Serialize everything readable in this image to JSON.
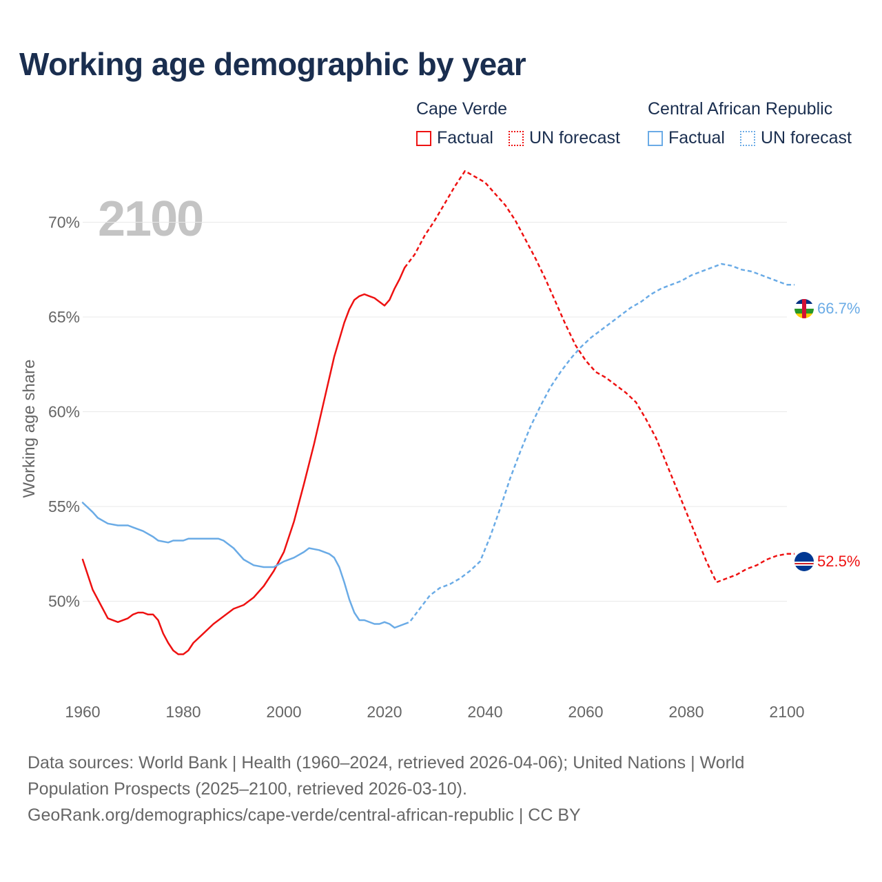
{
  "header": {
    "title": "Working age demographic by year"
  },
  "legend": {
    "groups": [
      {
        "name": "Cape Verde",
        "color": "#ee1111",
        "factual": "Factual",
        "forecast": "UN forecast"
      },
      {
        "name": "Central African Republic",
        "color": "#6aabe6",
        "factual": "Factual",
        "forecast": "UN forecast"
      }
    ]
  },
  "year_label": "2100",
  "chart_data": {
    "type": "line",
    "title": "Working age demographic by year",
    "xlabel": "",
    "ylabel": "Working age share",
    "xlim": [
      1960,
      2100
    ],
    "ylim": [
      45,
      73
    ],
    "x_ticks": [
      "1960",
      "1980",
      "2000",
      "2020",
      "2040",
      "2060",
      "2080",
      "2100"
    ],
    "y_ticks": [
      "50%",
      "55%",
      "60%",
      "65%",
      "70%"
    ],
    "y_tick_values": [
      50,
      55,
      60,
      65,
      70
    ],
    "factual_range": [
      1960,
      2024
    ],
    "forecast_range": [
      2025,
      2100
    ],
    "series": [
      {
        "name": "Cape Verde",
        "color": "#ee1111",
        "end_label": "52.5%",
        "points": [
          [
            1960,
            52.2
          ],
          [
            1962,
            50.6
          ],
          [
            1964,
            49.6
          ],
          [
            1965,
            49.1
          ],
          [
            1967,
            48.9
          ],
          [
            1969,
            49.1
          ],
          [
            1970,
            49.3
          ],
          [
            1971,
            49.4
          ],
          [
            1972,
            49.4
          ],
          [
            1973,
            49.3
          ],
          [
            1974,
            49.3
          ],
          [
            1975,
            49.0
          ],
          [
            1976,
            48.3
          ],
          [
            1977,
            47.8
          ],
          [
            1978,
            47.4
          ],
          [
            1979,
            47.2
          ],
          [
            1980,
            47.2
          ],
          [
            1981,
            47.4
          ],
          [
            1982,
            47.8
          ],
          [
            1984,
            48.3
          ],
          [
            1986,
            48.8
          ],
          [
            1988,
            49.2
          ],
          [
            1990,
            49.6
          ],
          [
            1992,
            49.8
          ],
          [
            1994,
            50.2
          ],
          [
            1996,
            50.8
          ],
          [
            1998,
            51.6
          ],
          [
            2000,
            52.6
          ],
          [
            2002,
            54.2
          ],
          [
            2004,
            56.2
          ],
          [
            2006,
            58.3
          ],
          [
            2008,
            60.6
          ],
          [
            2010,
            62.9
          ],
          [
            2012,
            64.7
          ],
          [
            2013,
            65.4
          ],
          [
            2014,
            65.9
          ],
          [
            2015,
            66.1
          ],
          [
            2016,
            66.2
          ],
          [
            2017,
            66.1
          ],
          [
            2018,
            66.0
          ],
          [
            2019,
            65.8
          ],
          [
            2020,
            65.6
          ],
          [
            2021,
            65.9
          ],
          [
            2022,
            66.5
          ],
          [
            2023,
            67.0
          ],
          [
            2024,
            67.6
          ],
          [
            2026,
            68.3
          ],
          [
            2028,
            69.3
          ],
          [
            2030,
            70.1
          ],
          [
            2032,
            71.0
          ],
          [
            2034,
            71.9
          ],
          [
            2036,
            72.7
          ],
          [
            2038,
            72.4
          ],
          [
            2040,
            72.1
          ],
          [
            2042,
            71.5
          ],
          [
            2044,
            70.9
          ],
          [
            2046,
            70.1
          ],
          [
            2048,
            69.1
          ],
          [
            2050,
            68.1
          ],
          [
            2052,
            67.0
          ],
          [
            2054,
            65.8
          ],
          [
            2056,
            64.6
          ],
          [
            2058,
            63.5
          ],
          [
            2060,
            62.7
          ],
          [
            2062,
            62.1
          ],
          [
            2064,
            61.8
          ],
          [
            2066,
            61.4
          ],
          [
            2068,
            61.0
          ],
          [
            2070,
            60.5
          ],
          [
            2072,
            59.6
          ],
          [
            2074,
            58.6
          ],
          [
            2076,
            57.3
          ],
          [
            2078,
            56.0
          ],
          [
            2080,
            54.7
          ],
          [
            2082,
            53.4
          ],
          [
            2084,
            52.1
          ],
          [
            2086,
            51.0
          ],
          [
            2088,
            51.2
          ],
          [
            2090,
            51.4
          ],
          [
            2092,
            51.7
          ],
          [
            2094,
            51.9
          ],
          [
            2096,
            52.2
          ],
          [
            2098,
            52.4
          ],
          [
            2100,
            52.5
          ]
        ]
      },
      {
        "name": "Central African Republic",
        "color": "#6aabe6",
        "end_label": "66.7%",
        "points": [
          [
            1960,
            55.2
          ],
          [
            1962,
            54.7
          ],
          [
            1963,
            54.4
          ],
          [
            1965,
            54.1
          ],
          [
            1967,
            54.0
          ],
          [
            1969,
            54.0
          ],
          [
            1970,
            53.9
          ],
          [
            1972,
            53.7
          ],
          [
            1974,
            53.4
          ],
          [
            1975,
            53.2
          ],
          [
            1977,
            53.1
          ],
          [
            1978,
            53.2
          ],
          [
            1980,
            53.2
          ],
          [
            1981,
            53.3
          ],
          [
            1983,
            53.3
          ],
          [
            1985,
            53.3
          ],
          [
            1987,
            53.3
          ],
          [
            1988,
            53.2
          ],
          [
            1990,
            52.8
          ],
          [
            1992,
            52.2
          ],
          [
            1994,
            51.9
          ],
          [
            1996,
            51.8
          ],
          [
            1998,
            51.8
          ],
          [
            2000,
            52.1
          ],
          [
            2002,
            52.3
          ],
          [
            2004,
            52.6
          ],
          [
            2005,
            52.8
          ],
          [
            2007,
            52.7
          ],
          [
            2009,
            52.5
          ],
          [
            2010,
            52.3
          ],
          [
            2011,
            51.8
          ],
          [
            2012,
            51.0
          ],
          [
            2013,
            50.1
          ],
          [
            2014,
            49.4
          ],
          [
            2015,
            49.0
          ],
          [
            2016,
            49.0
          ],
          [
            2018,
            48.8
          ],
          [
            2019,
            48.8
          ],
          [
            2020,
            48.9
          ],
          [
            2021,
            48.8
          ],
          [
            2022,
            48.6
          ],
          [
            2024,
            48.8
          ],
          [
            2025,
            48.9
          ],
          [
            2027,
            49.6
          ],
          [
            2029,
            50.3
          ],
          [
            2031,
            50.7
          ],
          [
            2033,
            50.9
          ],
          [
            2035,
            51.2
          ],
          [
            2037,
            51.6
          ],
          [
            2039,
            52.1
          ],
          [
            2041,
            53.4
          ],
          [
            2043,
            54.9
          ],
          [
            2045,
            56.5
          ],
          [
            2047,
            57.9
          ],
          [
            2049,
            59.2
          ],
          [
            2051,
            60.3
          ],
          [
            2053,
            61.3
          ],
          [
            2055,
            62.1
          ],
          [
            2057,
            62.8
          ],
          [
            2059,
            63.4
          ],
          [
            2061,
            63.9
          ],
          [
            2063,
            64.3
          ],
          [
            2065,
            64.7
          ],
          [
            2067,
            65.1
          ],
          [
            2069,
            65.5
          ],
          [
            2071,
            65.8
          ],
          [
            2073,
            66.2
          ],
          [
            2075,
            66.5
          ],
          [
            2077,
            66.7
          ],
          [
            2079,
            66.9
          ],
          [
            2081,
            67.2
          ],
          [
            2083,
            67.4
          ],
          [
            2085,
            67.6
          ],
          [
            2087,
            67.8
          ],
          [
            2089,
            67.7
          ],
          [
            2091,
            67.5
          ],
          [
            2093,
            67.4
          ],
          [
            2095,
            67.2
          ],
          [
            2097,
            67.0
          ],
          [
            2099,
            66.8
          ],
          [
            2100,
            66.7
          ]
        ]
      }
    ]
  },
  "footer": {
    "line1": "Data sources: World Bank | Health (1960–2024, retrieved 2026-04-06); United Nations | World",
    "line2": "Population Prospects (2025–2100, retrieved 2026-03-10).",
    "line3": "GeoRank.org/demographics/cape-verde/central-african-republic | CC BY"
  },
  "colors": {
    "title": "#1a2e4f",
    "axis_text": "#666666",
    "grid": "#e8e8e8",
    "year_watermark": "#c4c4c4"
  }
}
